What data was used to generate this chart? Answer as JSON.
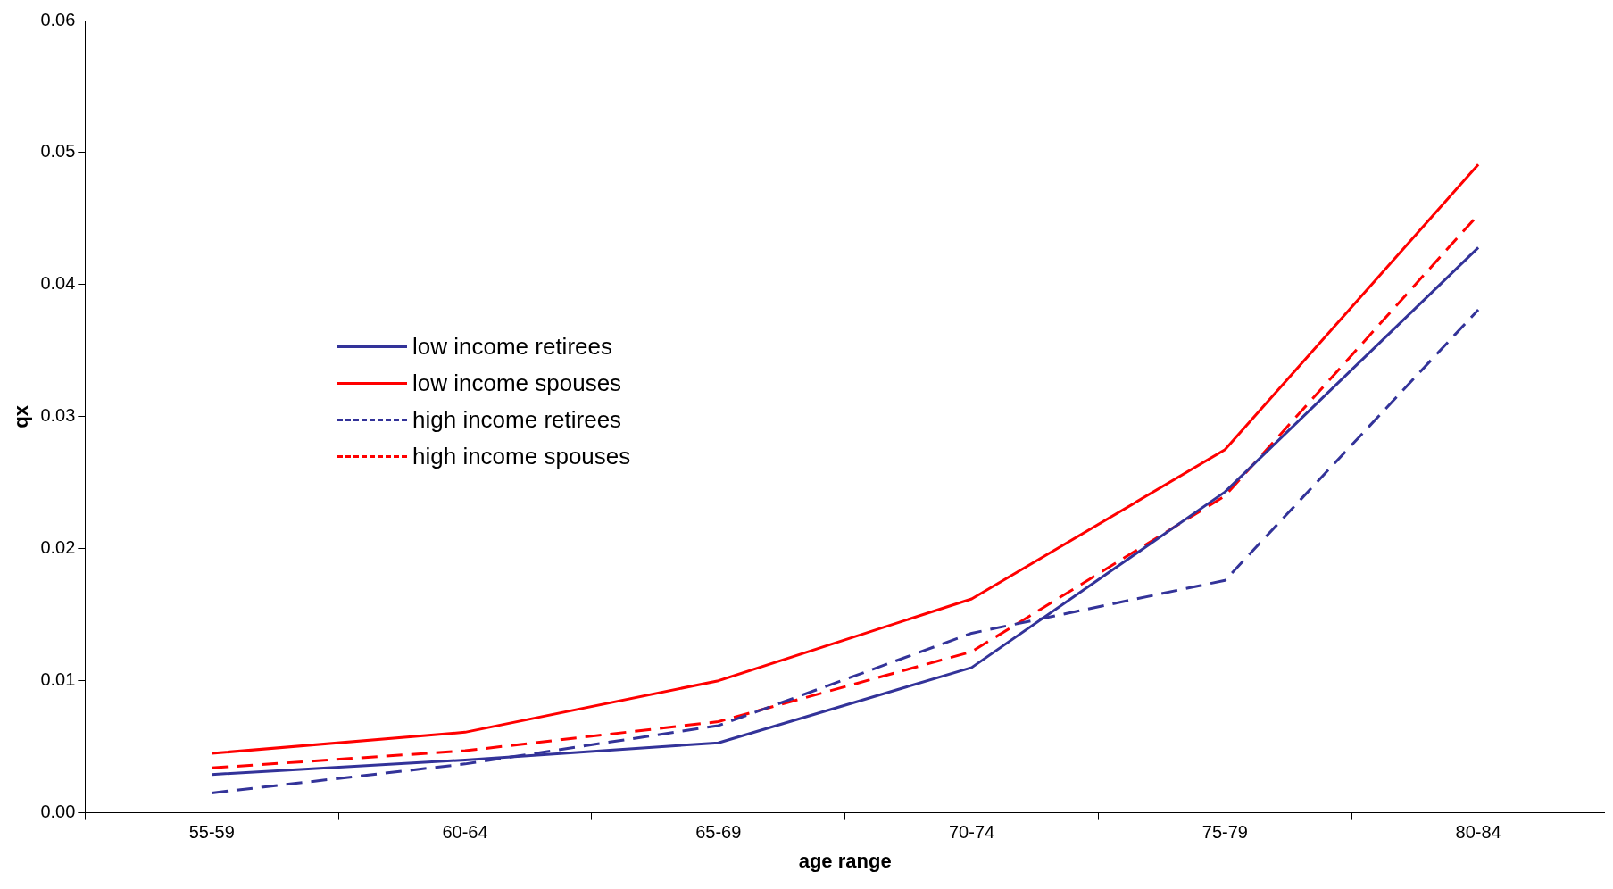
{
  "chart_data": {
    "type": "line",
    "xlabel": "age range",
    "ylabel": "qx",
    "categories": [
      "55-59",
      "60-64",
      "65-69",
      "70-74",
      "75-79",
      "80-84"
    ],
    "series": [
      {
        "name": "low income retirees",
        "color": "#333399",
        "line_style": "solid",
        "values": [
          0.0029,
          0.004,
          0.0053,
          0.011,
          0.0243,
          0.0428
        ]
      },
      {
        "name": "low income spouses",
        "color": "#ff0000",
        "line_style": "solid",
        "values": [
          0.0045,
          0.0061,
          0.01,
          0.0162,
          0.0275,
          0.0491
        ]
      },
      {
        "name": "high income retirees",
        "color": "#333399",
        "line_style": "dashed",
        "values": [
          0.0015,
          0.0037,
          0.0066,
          0.0136,
          0.0176,
          0.0381
        ]
      },
      {
        "name": "high income spouses",
        "color": "#ff0000",
        "line_style": "dashed",
        "values": [
          0.0034,
          0.0047,
          0.0069,
          0.0122,
          0.024,
          0.0453
        ]
      }
    ],
    "ylim": [
      0,
      0.06
    ],
    "yticks": [
      {
        "value": 0,
        "label": "0.00"
      },
      {
        "value": 0.01,
        "label": "0.01"
      },
      {
        "value": 0.02,
        "label": "0.02"
      },
      {
        "value": 0.03,
        "label": "0.03"
      },
      {
        "value": 0.04,
        "label": "0.04"
      },
      {
        "value": 0.05,
        "label": "0.05"
      },
      {
        "value": 0.06,
        "label": "0.06"
      }
    ],
    "grid": false,
    "legend": "left",
    "marker": "none"
  }
}
